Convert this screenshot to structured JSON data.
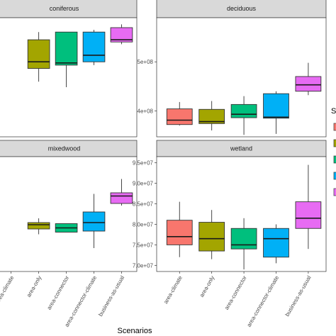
{
  "chart_data": {
    "type": "boxplot",
    "xlabel": "Scenarios",
    "categories": [
      "area-climate",
      "area-only",
      "area-connector",
      "area-connector-climate",
      "business-as-usual"
    ],
    "legend": {
      "title": "S",
      "placement": "right"
    },
    "colors": {
      "area-climate": "#F8766D",
      "area-only": "#A3A500",
      "area-connector": "#00BF7D",
      "area-connector-climate": "#00B0F6",
      "business-as-usual": "#E76BF3"
    },
    "panels": [
      {
        "title": "coniferous",
        "yticks": [],
        "boxes": [
          {
            "category": "area-only",
            "min": 0.5,
            "q1": 0.62,
            "median": 0.68,
            "q3": 0.88,
            "max": 0.95
          },
          {
            "category": "area-connector",
            "min": 0.45,
            "q1": 0.65,
            "median": 0.67,
            "q3": 0.95,
            "max": 0.95
          },
          {
            "category": "area-connector-climate",
            "min": 0.65,
            "q1": 0.68,
            "median": 0.74,
            "q3": 0.95,
            "max": 0.97
          },
          {
            "category": "business-as-usual",
            "min": 0.84,
            "q1": 0.86,
            "median": 0.88,
            "q3": 0.99,
            "max": 1.02
          }
        ]
      },
      {
        "title": "deciduous",
        "ylim": [
          347000000,
          590000000
        ],
        "yticks": [
          {
            "value": 400000000,
            "label": "4e+08"
          },
          {
            "value": 500000000,
            "label": "5e+08"
          }
        ],
        "boxes": [
          {
            "category": "area-climate",
            "min": 370000000,
            "q1": 372000000,
            "median": 381000000,
            "q3": 404000000,
            "max": 418000000
          },
          {
            "category": "area-only",
            "min": 360000000,
            "q1": 374000000,
            "median": 378000000,
            "q3": 403000000,
            "max": 420000000
          },
          {
            "category": "area-connector",
            "min": 351000000,
            "q1": 386000000,
            "median": 393000000,
            "q3": 413000000,
            "max": 430000000
          },
          {
            "category": "area-connector-climate",
            "min": 353000000,
            "q1": 385000000,
            "median": 387000000,
            "q3": 435000000,
            "max": 440000000
          },
          {
            "category": "business-as-usual",
            "min": 432000000,
            "q1": 440000000,
            "median": 453000000,
            "q3": 470000000,
            "max": 498000000
          }
        ]
      },
      {
        "title": "mixedwood",
        "yticks": [],
        "boxes": [
          {
            "category": "area-only",
            "min": 0.35,
            "q1": 0.4,
            "median": 0.44,
            "q3": 0.46,
            "max": 0.5
          },
          {
            "category": "area-connector",
            "min": 0.37,
            "q1": 0.37,
            "median": 0.41,
            "q3": 0.45,
            "max": 0.45
          },
          {
            "category": "area-connector-climate",
            "min": 0.22,
            "q1": 0.38,
            "median": 0.46,
            "q3": 0.56,
            "max": 0.73
          },
          {
            "category": "business-as-usual",
            "min": 0.62,
            "q1": 0.64,
            "median": 0.71,
            "q3": 0.74,
            "max": 0.87
          }
        ]
      },
      {
        "title": "wetland",
        "ylim": [
          68500000,
          96500000
        ],
        "yticks": [
          {
            "value": 70000000,
            "label": "7.0e+07"
          },
          {
            "value": 75000000,
            "label": "7.5e+07"
          },
          {
            "value": 80000000,
            "label": "8.0e+07"
          },
          {
            "value": 85000000,
            "label": "8.5e+07"
          },
          {
            "value": 90000000,
            "label": "9.0e+07"
          },
          {
            "value": 95000000,
            "label": "9.5e+07"
          }
        ],
        "boxes": [
          {
            "category": "area-climate",
            "min": 72000000,
            "q1": 75000000,
            "median": 77000000,
            "q3": 81000000,
            "max": 85500000
          },
          {
            "category": "area-only",
            "min": 71500000,
            "q1": 73500000,
            "median": 76500000,
            "q3": 80500000,
            "max": 83500000
          },
          {
            "category": "area-connector",
            "min": 69000000,
            "q1": 74000000,
            "median": 75000000,
            "q3": 79000000,
            "max": 81500000
          },
          {
            "category": "area-connector-climate",
            "min": 70500000,
            "q1": 72000000,
            "median": 76500000,
            "q3": 79000000,
            "max": 80000000
          },
          {
            "category": "business-as-usual",
            "min": 74000000,
            "q1": 79000000,
            "median": 81500000,
            "q3": 85500000,
            "max": 94500000
          }
        ]
      }
    ]
  }
}
